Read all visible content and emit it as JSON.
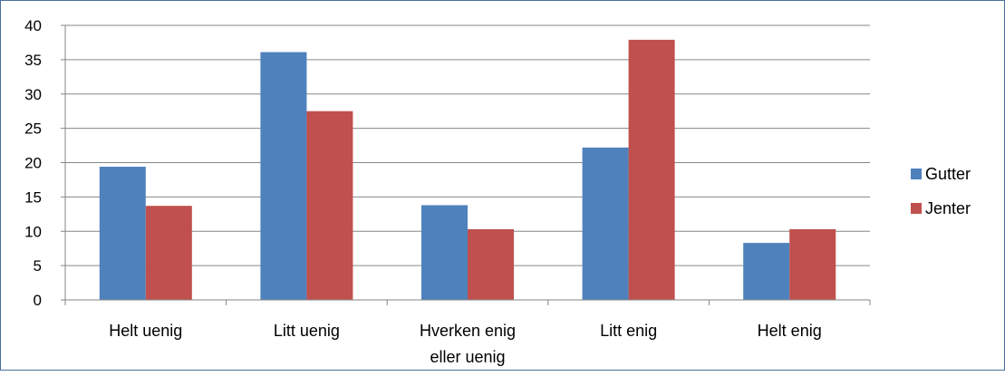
{
  "chart_data": {
    "type": "bar",
    "categories": [
      [
        "Helt uenig"
      ],
      [
        "Litt uenig"
      ],
      [
        "Hverken enig",
        "eller uenig"
      ],
      [
        "Litt enig"
      ],
      [
        "Helt enig"
      ]
    ],
    "series": [
      {
        "name": "Gutter",
        "color": "#4f81bd",
        "values": [
          19.4,
          36.1,
          13.8,
          22.2,
          8.3
        ]
      },
      {
        "name": "Jenter",
        "color": "#c0504d",
        "values": [
          13.7,
          27.5,
          10.3,
          37.9,
          10.3
        ]
      }
    ],
    "yticks": [
      "0",
      "5",
      "10",
      "15",
      "20",
      "25",
      "30",
      "35",
      "40"
    ],
    "ylim": [
      0,
      40
    ],
    "grid": true,
    "legend_position": "right"
  }
}
